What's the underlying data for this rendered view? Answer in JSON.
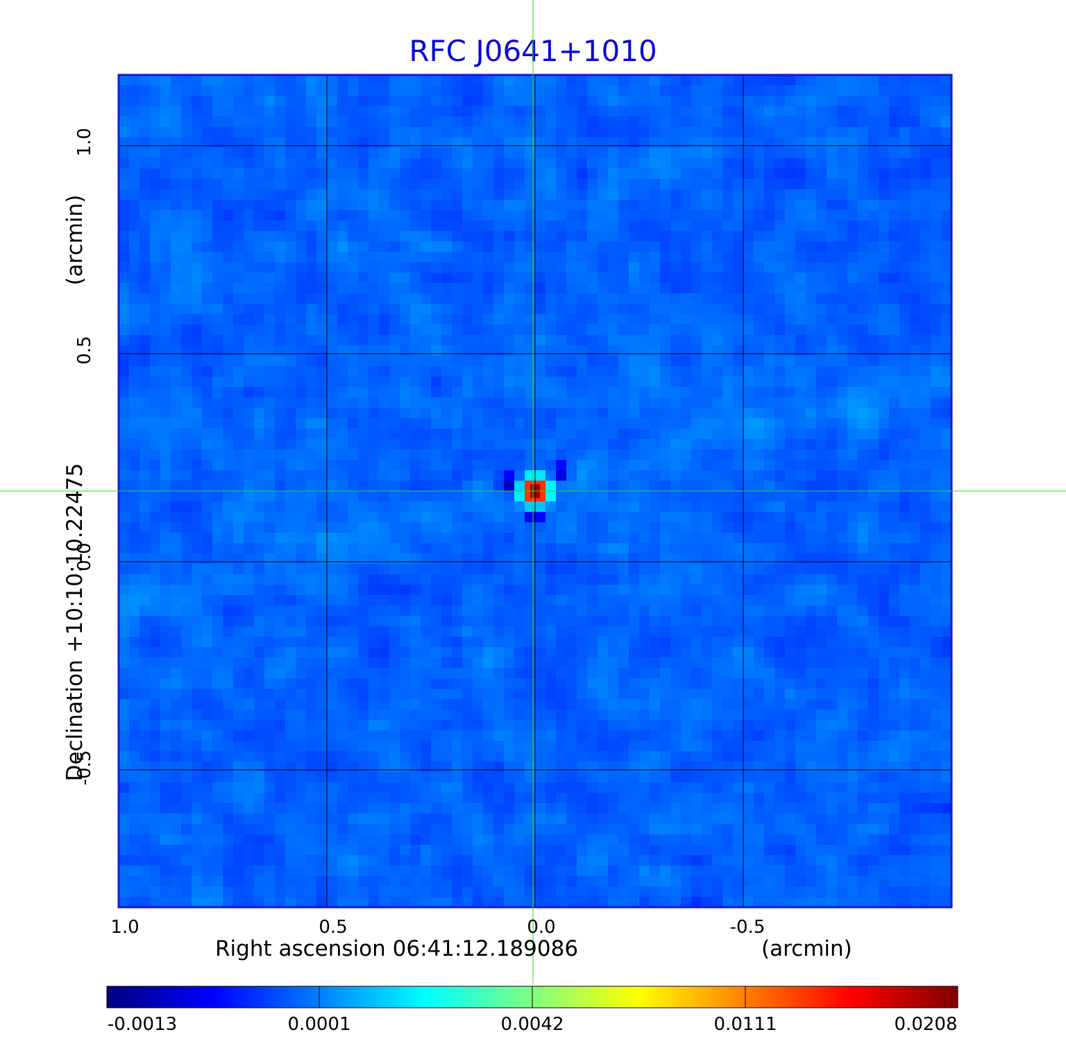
{
  "chart_data": {
    "type": "heatmap",
    "title": "RFC J0641+1010",
    "xlabel": "Right ascension  06:41:12.189086",
    "xunit": "(arcmin)",
    "ylabel": "Declination  +10:10:10.22475",
    "yunit": "(arcmin)",
    "xlim": [
      1.0,
      -1.0
    ],
    "ylim": [
      -0.83,
      1.17
    ],
    "xticks": [
      "1.0",
      "0.5",
      "0.0",
      "-0.5"
    ],
    "xtick_values": [
      1.0,
      0.5,
      0.0,
      -0.5
    ],
    "yticks": [
      "1.0",
      "0.5",
      "0.0",
      "-0.5"
    ],
    "ytick_values": [
      1.0,
      0.5,
      0.0,
      -0.5
    ],
    "grid": true,
    "crosshair": {
      "x": 0.0,
      "y": 0.17,
      "color": "#22dd22"
    },
    "source": {
      "x": 0.0,
      "y": 0.17,
      "peak": 0.0208
    },
    "colorbar": {
      "ticks": [
        "-0.0013",
        "0.0001",
        "0.0042",
        "0.0111",
        "0.0208"
      ],
      "tick_values": [
        -0.0013,
        0.0001,
        0.0042,
        0.0111,
        0.0208
      ],
      "colormap": "jet",
      "stops": [
        "#000080",
        "#0000ff",
        "#0080ff",
        "#00ffff",
        "#80ff80",
        "#ffff00",
        "#ff8000",
        "#ff0000",
        "#800000"
      ]
    },
    "colors": {
      "title": "#0a0ad8",
      "frame": "#1a1ad0",
      "background_map": "#1e8cff"
    }
  }
}
